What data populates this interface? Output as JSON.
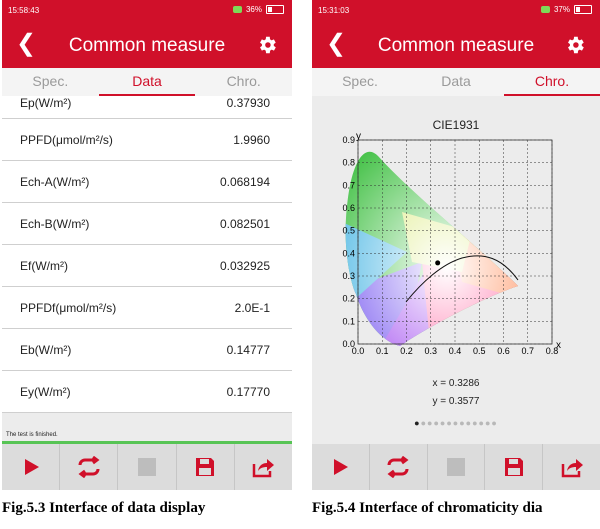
{
  "screen_left": {
    "status": {
      "time": "15:58:43",
      "battery": "36%"
    },
    "appbar": {
      "title": "Common measure"
    },
    "tabs": [
      "Spec.",
      "Data",
      "Chro."
    ],
    "active_tab": 1,
    "rows": [
      {
        "label": "Ep(W/m²)",
        "value": "0.37930"
      },
      {
        "label": "PPFD(μmol/m²/s)",
        "value": "1.9960"
      },
      {
        "label": "Ech-A(W/m²)",
        "value": "0.068194"
      },
      {
        "label": "Ech-B(W/m²)",
        "value": "0.082501"
      },
      {
        "label": "Ef(W/m²)",
        "value": "0.032925"
      },
      {
        "label": "PPFDf(μmol/m²/s)",
        "value": "2.0E-1"
      },
      {
        "label": "Eb(W/m²)",
        "value": "0.14777"
      },
      {
        "label": "Ey(W/m²)",
        "value": "0.17770"
      }
    ],
    "status_message": "The test is finished.",
    "caption": "Fig.5.3    Interface of data display"
  },
  "screen_right": {
    "status": {
      "time": "15:31:03",
      "battery": "37%"
    },
    "appbar": {
      "title": "Common measure"
    },
    "tabs": [
      "Spec.",
      "Data",
      "Chro."
    ],
    "active_tab": 2,
    "chart_data": {
      "type": "scatter",
      "title": "CIE1931",
      "xlabel": "x",
      "ylabel": "y",
      "xlim": [
        0,
        0.8
      ],
      "ylim": [
        0,
        0.9
      ],
      "x_ticks": [
        "0.0",
        "0.1",
        "0.2",
        "0.3",
        "0.4",
        "0.5",
        "0.6",
        "0.7",
        "0.8"
      ],
      "y_ticks": [
        "0.0",
        "0.1",
        "0.2",
        "0.3",
        "0.4",
        "0.5",
        "0.6",
        "0.7",
        "0.8",
        "0.9"
      ],
      "grid": true,
      "point": {
        "x": 0.3286,
        "y": 0.3577
      }
    },
    "coord_x": "x = 0.3286",
    "coord_y": "y = 0.3577",
    "page_indicator": {
      "count": 13,
      "current": 0
    },
    "caption": "Fig.5.4 Interface of chromaticity dia"
  },
  "colors": {
    "brand": "#d0102a",
    "progress": "#57c455",
    "toolbar": "#dcdcdc"
  },
  "toolbar_icons": [
    "play-icon",
    "repeat-icon",
    "stop-icon",
    "save-icon",
    "share-icon"
  ]
}
